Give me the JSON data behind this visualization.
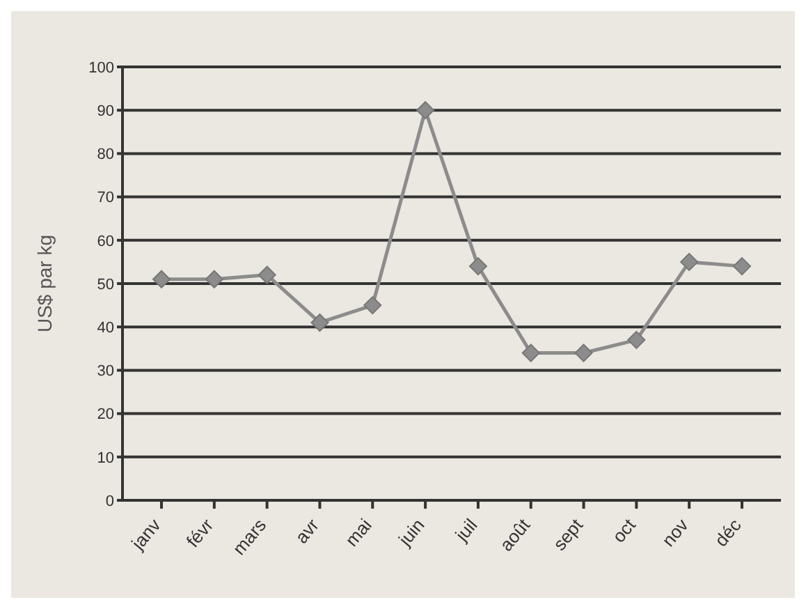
{
  "chart_data": {
    "type": "line",
    "ylabel": "US$ par kg",
    "categories": [
      "janv",
      "févr",
      "mars",
      "avr",
      "mai",
      "juin",
      "juil",
      "août",
      "sept",
      "oct",
      "nov",
      "déc"
    ],
    "series": [
      {
        "color": "#8c8c8c",
        "values": [
          51,
          51,
          52,
          41,
          45,
          90,
          54,
          34,
          34,
          37,
          55,
          54
        ]
      }
    ],
    "ylim": [
      0,
      100
    ],
    "yticks": [
      0,
      10,
      20,
      30,
      40,
      50,
      60,
      70,
      80,
      90,
      100
    ],
    "grid": "y",
    "marker": "diamond",
    "line_style": "solid"
  }
}
